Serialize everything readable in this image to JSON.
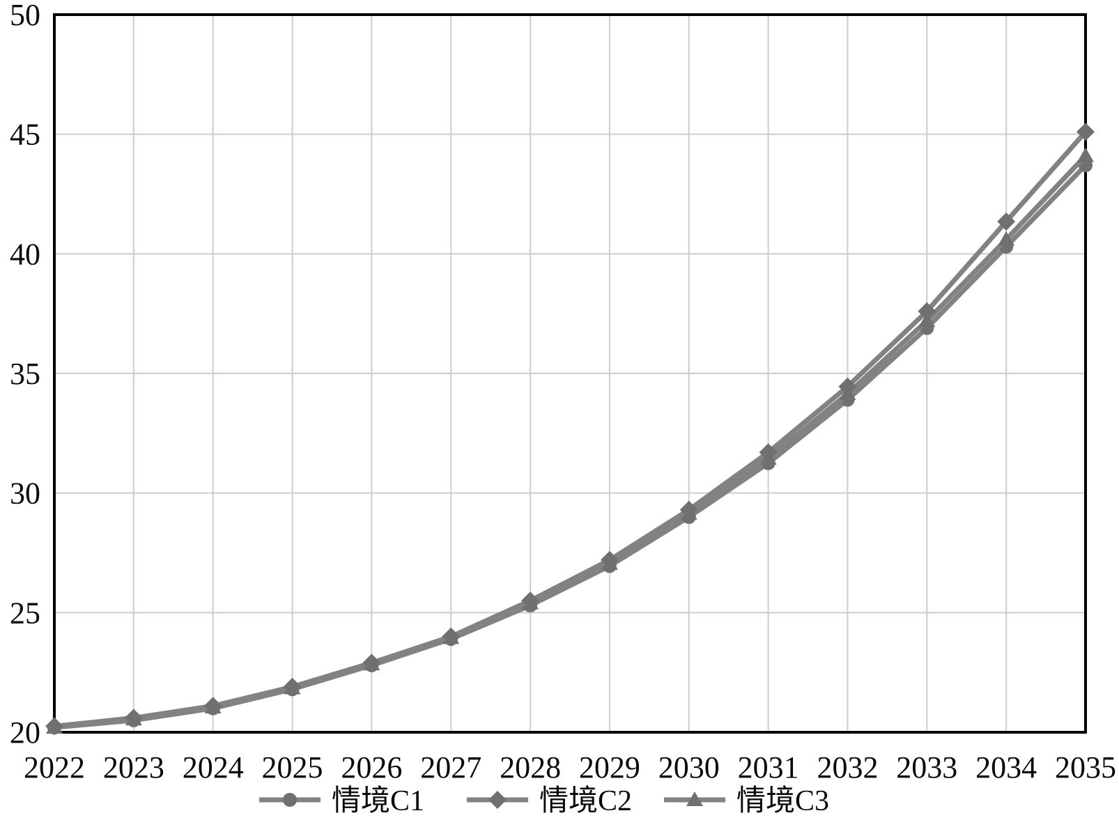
{
  "figure": {
    "background": "#ffffff"
  },
  "chart_data": {
    "type": "line",
    "x": [
      2022,
      2023,
      2024,
      2025,
      2026,
      2027,
      2028,
      2029,
      2030,
      2031,
      2032,
      2033,
      2034,
      2035
    ],
    "x_tick_labels": [
      "2022",
      "2023",
      "2024",
      "2025",
      "2026",
      "2027",
      "2028",
      "2029",
      "2030",
      "2031",
      "2032",
      "2033",
      "2034",
      "2035"
    ],
    "yticks": [
      20,
      25,
      30,
      35,
      40,
      45,
      50
    ],
    "ytick_labels": [
      "20",
      "25",
      "30",
      "35",
      "40",
      "45",
      "50"
    ],
    "ylim": [
      20,
      50
    ],
    "xlim": [
      2022,
      2035
    ],
    "grid": true,
    "legend_position": "bottom",
    "colors": {
      "line": "#828282",
      "marker": "#707070",
      "gridline": "#cccccc",
      "axis": "#000000",
      "text": "#0a0a0a"
    },
    "series": [
      {
        "name": "情境C1",
        "marker": "circle",
        "values": [
          20.2,
          20.5,
          21.0,
          21.8,
          22.8,
          23.9,
          25.3,
          26.95,
          29.0,
          31.25,
          33.9,
          36.9,
          40.3,
          43.7
        ]
      },
      {
        "name": "情境C2",
        "marker": "diamond",
        "values": [
          20.25,
          20.6,
          21.1,
          21.9,
          22.9,
          24.0,
          25.5,
          27.2,
          29.3,
          31.7,
          34.45,
          37.6,
          41.35,
          45.1
        ]
      },
      {
        "name": "情境C3",
        "marker": "triangle",
        "values": [
          20.2,
          20.55,
          21.05,
          21.85,
          22.85,
          23.95,
          25.4,
          27.05,
          29.15,
          31.45,
          34.15,
          37.2,
          40.6,
          44.1
        ]
      }
    ]
  }
}
